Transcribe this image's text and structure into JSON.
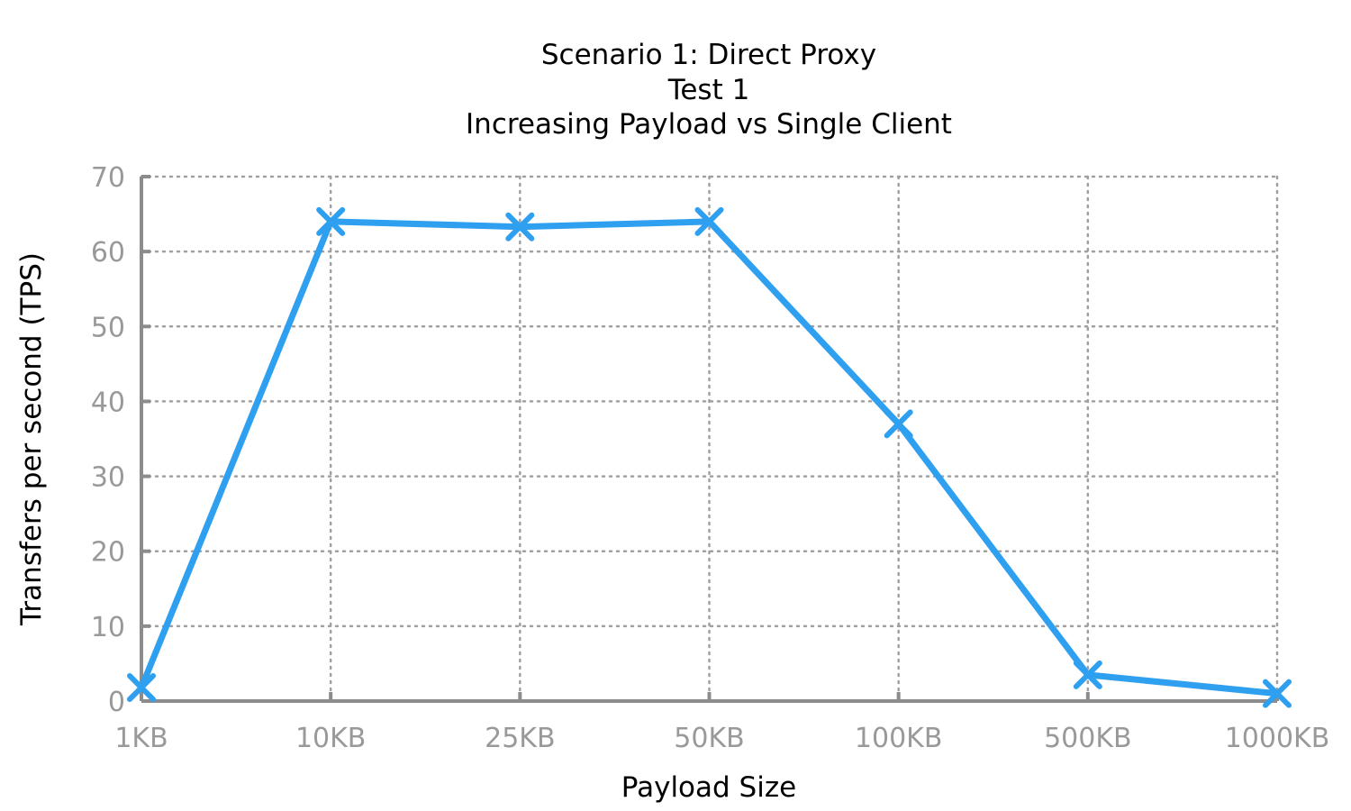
{
  "chart_data": {
    "type": "line",
    "title_lines": [
      "Scenario 1: Direct Proxy",
      "Test 1",
      "Increasing Payload vs Single Client"
    ],
    "xlabel": "Payload Size",
    "ylabel": "Transfers per second (TPS)",
    "categories": [
      "1KB",
      "10KB",
      "25KB",
      "50KB",
      "100KB",
      "500KB",
      "1000KB"
    ],
    "series": [
      {
        "values": [
          1.8,
          64.0,
          63.3,
          64.0,
          37.0,
          3.5,
          1.0
        ],
        "color": "#2f9ff0",
        "marker": "x"
      }
    ],
    "ylim": [
      0,
      70
    ],
    "yticks": [
      "0",
      "10",
      "20",
      "30",
      "40",
      "50",
      "60",
      "70"
    ],
    "grid": true
  }
}
